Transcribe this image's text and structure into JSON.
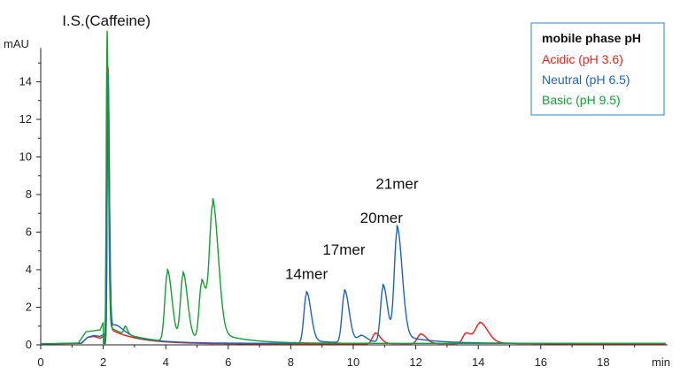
{
  "chart_data": {
    "type": "line",
    "title": "",
    "xlabel": "min",
    "ylabel": "mAU",
    "xlim": [
      0,
      20
    ],
    "ylim": [
      0,
      16
    ],
    "x_ticks": [
      0,
      2,
      4,
      6,
      8,
      10,
      12,
      14,
      16,
      18
    ],
    "y_ticks": [
      0,
      2,
      4,
      6,
      8,
      10,
      12,
      14
    ],
    "legend": {
      "title": "mobile phase pH",
      "position": "top-right"
    },
    "annotations": [
      {
        "text": "I.S.(Caffeine)",
        "x": 2.1,
        "y": 17.0
      },
      {
        "text": "14mer",
        "x": 8.5,
        "y": 3.5
      },
      {
        "text": "17mer",
        "x": 9.7,
        "y": 4.8
      },
      {
        "text": "20mer",
        "x": 10.9,
        "y": 6.5
      },
      {
        "text": "21mer",
        "x": 11.4,
        "y": 8.3
      }
    ],
    "series": [
      {
        "name": "Acidic (pH 3.6)",
        "color": "#e8211e",
        "baseline": 0.05,
        "pre_points": [
          [
            0,
            0.05
          ],
          [
            1.3,
            0.08
          ],
          [
            1.5,
            0.4
          ],
          [
            1.7,
            0.45
          ],
          [
            1.9,
            0.35
          ],
          [
            2.05,
            0.5
          ]
        ],
        "peaks": [
          {
            "center": 2.15,
            "height": 14.0,
            "width": 0.025
          },
          {
            "center": 10.7,
            "height": 0.55,
            "width": 0.09
          },
          {
            "center": 12.15,
            "height": 0.5,
            "width": 0.1
          },
          {
            "center": 13.6,
            "height": 0.55,
            "width": 0.1
          },
          {
            "center": 14.05,
            "height": 1.05,
            "width": 0.14
          }
        ]
      },
      {
        "name": "Neutral (pH 6.5)",
        "color": "#1f64b4",
        "baseline": 0.08,
        "pre_points": [
          [
            0,
            0.05
          ],
          [
            1.3,
            0.1
          ],
          [
            1.5,
            0.4
          ],
          [
            1.7,
            0.5
          ],
          [
            1.9,
            0.45
          ],
          [
            2.05,
            0.6
          ]
        ],
        "peaks": [
          {
            "center": 2.15,
            "height": 13.6,
            "width": 0.025
          },
          {
            "center": 2.4,
            "height": 0.35,
            "width": 0.15
          },
          {
            "center": 8.5,
            "height": 2.6,
            "width": 0.08
          },
          {
            "center": 9.72,
            "height": 2.65,
            "width": 0.08
          },
          {
            "center": 10.25,
            "height": 0.3,
            "width": 0.1
          },
          {
            "center": 10.95,
            "height": 2.9,
            "width": 0.08
          },
          {
            "center": 11.4,
            "height": 5.75,
            "width": 0.09
          }
        ]
      },
      {
        "name": "Basic (pH 9.5)",
        "color": "#1a9a3a",
        "baseline": 0.08,
        "pre_points": [
          [
            0,
            0.05
          ],
          [
            1.2,
            0.1
          ],
          [
            1.45,
            0.7
          ],
          [
            1.7,
            0.75
          ],
          [
            1.9,
            0.8
          ],
          [
            2.0,
            1.2
          ]
        ],
        "peaks": [
          {
            "center": 2.12,
            "height": 15.8,
            "width": 0.025
          },
          {
            "center": 2.7,
            "height": 0.4,
            "width": 0.04
          },
          {
            "center": 4.05,
            "height": 3.6,
            "width": 0.08
          },
          {
            "center": 4.55,
            "height": 3.4,
            "width": 0.08
          },
          {
            "center": 5.15,
            "height": 3.0,
            "width": 0.08
          },
          {
            "center": 5.5,
            "height": 6.9,
            "width": 0.1
          }
        ]
      }
    ]
  }
}
